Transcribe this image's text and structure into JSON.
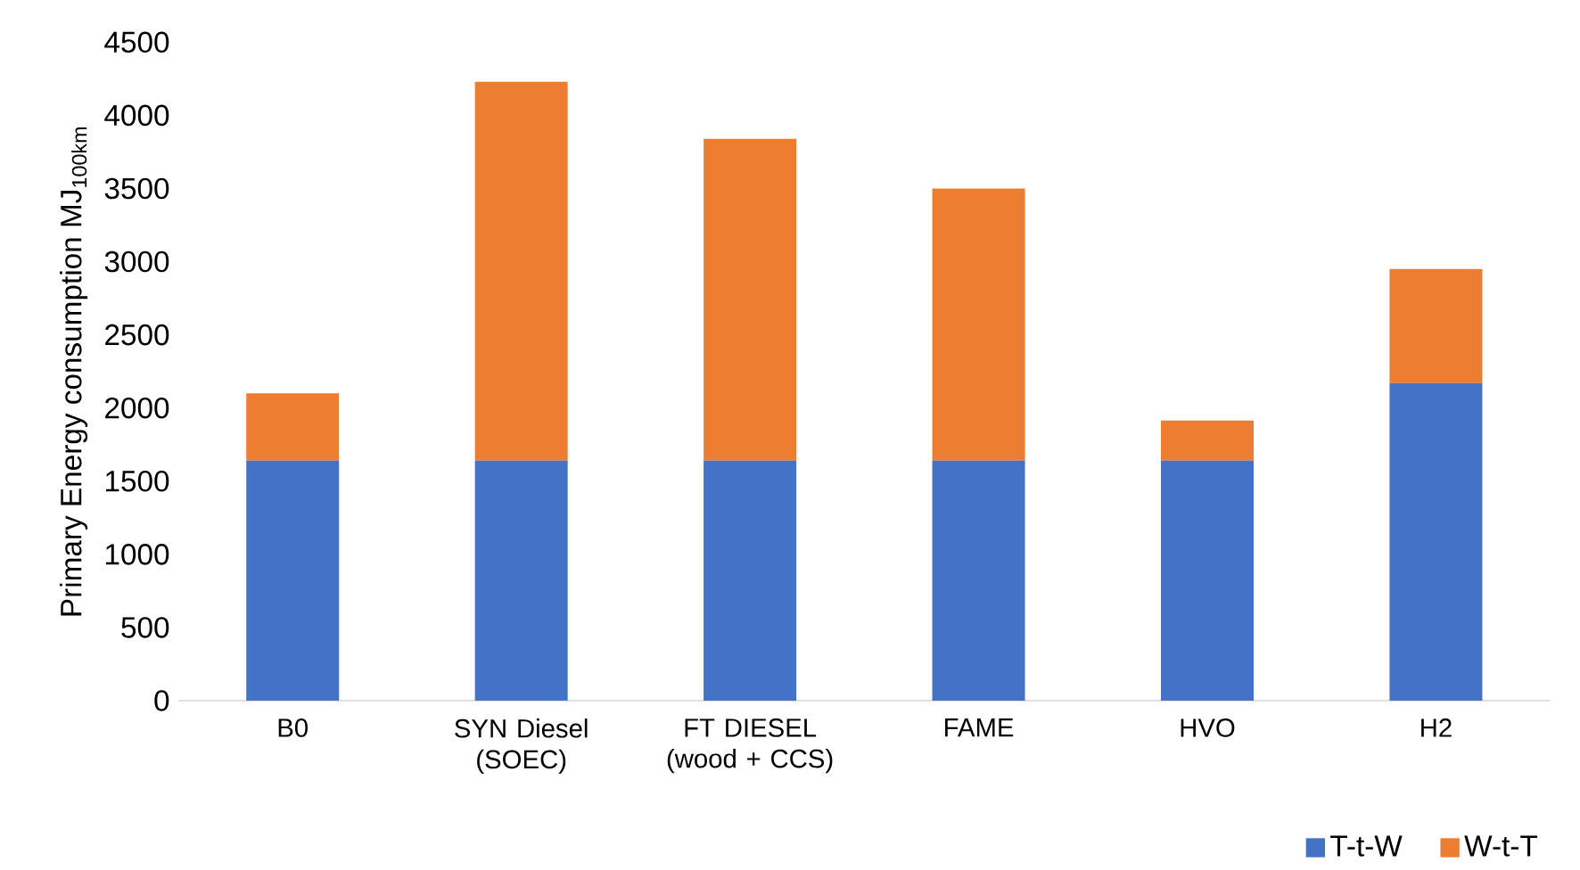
{
  "chart_data": {
    "type": "bar",
    "stacked": true,
    "ylabel": "Primary Energy consumption MJ$_{100km}$",
    "categories": [
      "B0",
      "SYN Diesel (SOEC)",
      "FT DIESEL (wood + CCS)",
      "FAME",
      "HVO",
      "H2"
    ],
    "series": [
      {
        "name": "T-t-W",
        "color": "#4472c4",
        "values": [
          1640,
          1640,
          1640,
          1640,
          1640,
          2170
        ]
      },
      {
        "name": "W-t-T",
        "color": "#ed7d31",
        "values": [
          460,
          2590,
          2200,
          1860,
          275,
          780
        ]
      }
    ],
    "ylim": [
      0,
      4500
    ],
    "yticks": [
      0,
      500,
      1000,
      1500,
      2000,
      2500,
      3000,
      3500,
      4000,
      4500
    ],
    "grid": false,
    "legend": "bottom right"
  }
}
